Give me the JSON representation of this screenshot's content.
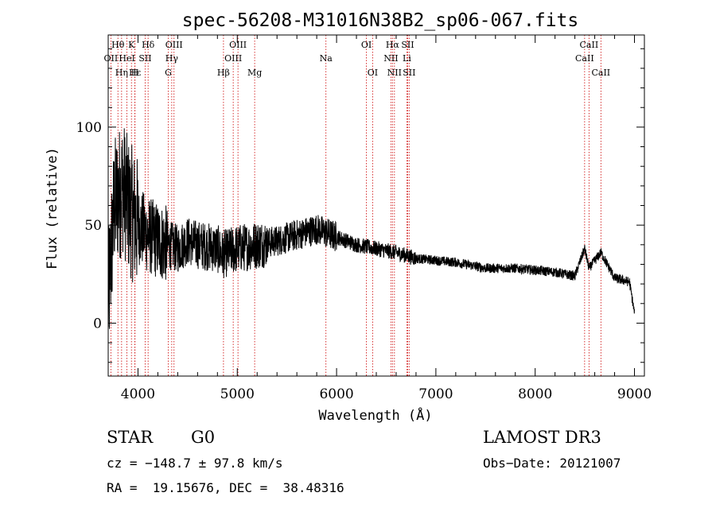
{
  "chart_data": {
    "type": "line",
    "title": "spec-56208-M31016N38B2_sp06-067.fits",
    "xlabel": "Wavelength (Å)",
    "ylabel": "Flux (relative)",
    "xlim": [
      3700,
      9100
    ],
    "ylim": [
      -27,
      147
    ],
    "xticks": [
      4000,
      5000,
      6000,
      7000,
      8000,
      9000
    ],
    "yticks": [
      0,
      50,
      100
    ],
    "spectrum_anchors": [
      [
        3700,
        10
      ],
      [
        3760,
        60
      ],
      [
        3800,
        65
      ],
      [
        3850,
        70
      ],
      [
        3900,
        60
      ],
      [
        3950,
        55
      ],
      [
        4000,
        50
      ],
      [
        4100,
        45
      ],
      [
        4200,
        42
      ],
      [
        4300,
        40
      ],
      [
        4400,
        38
      ],
      [
        4500,
        42
      ],
      [
        4600,
        40
      ],
      [
        4800,
        38
      ],
      [
        4850,
        35
      ],
      [
        5000,
        38
      ],
      [
        5200,
        40
      ],
      [
        5400,
        42
      ],
      [
        5600,
        45
      ],
      [
        5800,
        48
      ],
      [
        6000,
        44
      ],
      [
        6200,
        40
      ],
      [
        6400,
        38
      ],
      [
        6600,
        36
      ],
      [
        6800,
        33
      ],
      [
        7000,
        32
      ],
      [
        7200,
        31
      ],
      [
        7500,
        28
      ],
      [
        7800,
        28
      ],
      [
        8000,
        27
      ],
      [
        8200,
        26
      ],
      [
        8400,
        24
      ],
      [
        8498,
        38
      ],
      [
        8542,
        28
      ],
      [
        8662,
        36
      ],
      [
        8800,
        23
      ],
      [
        8950,
        21
      ],
      [
        9000,
        5
      ]
    ],
    "lines": [
      {
        "label": "OII",
        "x": 3727,
        "row": 1
      },
      {
        "label": "Hε",
        "x": 3970,
        "row": 2
      },
      {
        "label": "K",
        "x": 3934,
        "row": 0
      },
      {
        "label": "H",
        "x": 3969,
        "row": 2
      },
      {
        "label": "Hθ",
        "x": 3798,
        "row": 0
      },
      {
        "label": "Hη",
        "x": 3835,
        "row": 2
      },
      {
        "label": "HeI",
        "x": 3889,
        "row": 1
      },
      {
        "label": "SII",
        "x": 4072,
        "row": 1
      },
      {
        "label": "Hδ",
        "x": 4102,
        "row": 0
      },
      {
        "label": "G",
        "x": 4305,
        "row": 2
      },
      {
        "label": "OIII",
        "x": 4363,
        "row": 0
      },
      {
        "label": "Hγ",
        "x": 4340,
        "row": 1
      },
      {
        "label": "Hβ",
        "x": 4861,
        "row": 2
      },
      {
        "label": "OIII",
        "x": 4959,
        "row": 1
      },
      {
        "label": "OIII",
        "x": 5007,
        "row": 0
      },
      {
        "label": "Mg",
        "x": 5175,
        "row": 2
      },
      {
        "label": "Na",
        "x": 5893,
        "row": 1
      },
      {
        "label": "OI",
        "x": 6300,
        "row": 0
      },
      {
        "label": "OI",
        "x": 6363,
        "row": 2
      },
      {
        "label": "NII",
        "x": 6548,
        "row": 1
      },
      {
        "label": "Hα",
        "x": 6563,
        "row": 0
      },
      {
        "label": "NII",
        "x": 6583,
        "row": 2
      },
      {
        "label": "Li",
        "x": 6708,
        "row": 1
      },
      {
        "label": "SII",
        "x": 6716,
        "row": 0
      },
      {
        "label": "SII",
        "x": 6731,
        "row": 2
      },
      {
        "label": "CaII",
        "x": 8498,
        "row": 1
      },
      {
        "label": "CaII",
        "x": 8542,
        "row": 0
      },
      {
        "label": "CaII",
        "x": 8662,
        "row": 2
      }
    ]
  },
  "info": {
    "class": "STAR",
    "subclass": "G0",
    "survey": "LAMOST DR3",
    "cz": "cz = −148.7 ± 97.8 km/s",
    "obs_date": "Obs−Date: 20121007",
    "coords": "RA =  19.15676, DEC =  38.48316"
  },
  "colors": {
    "line_marker": "#cc0000",
    "spectrum": "#000000"
  }
}
